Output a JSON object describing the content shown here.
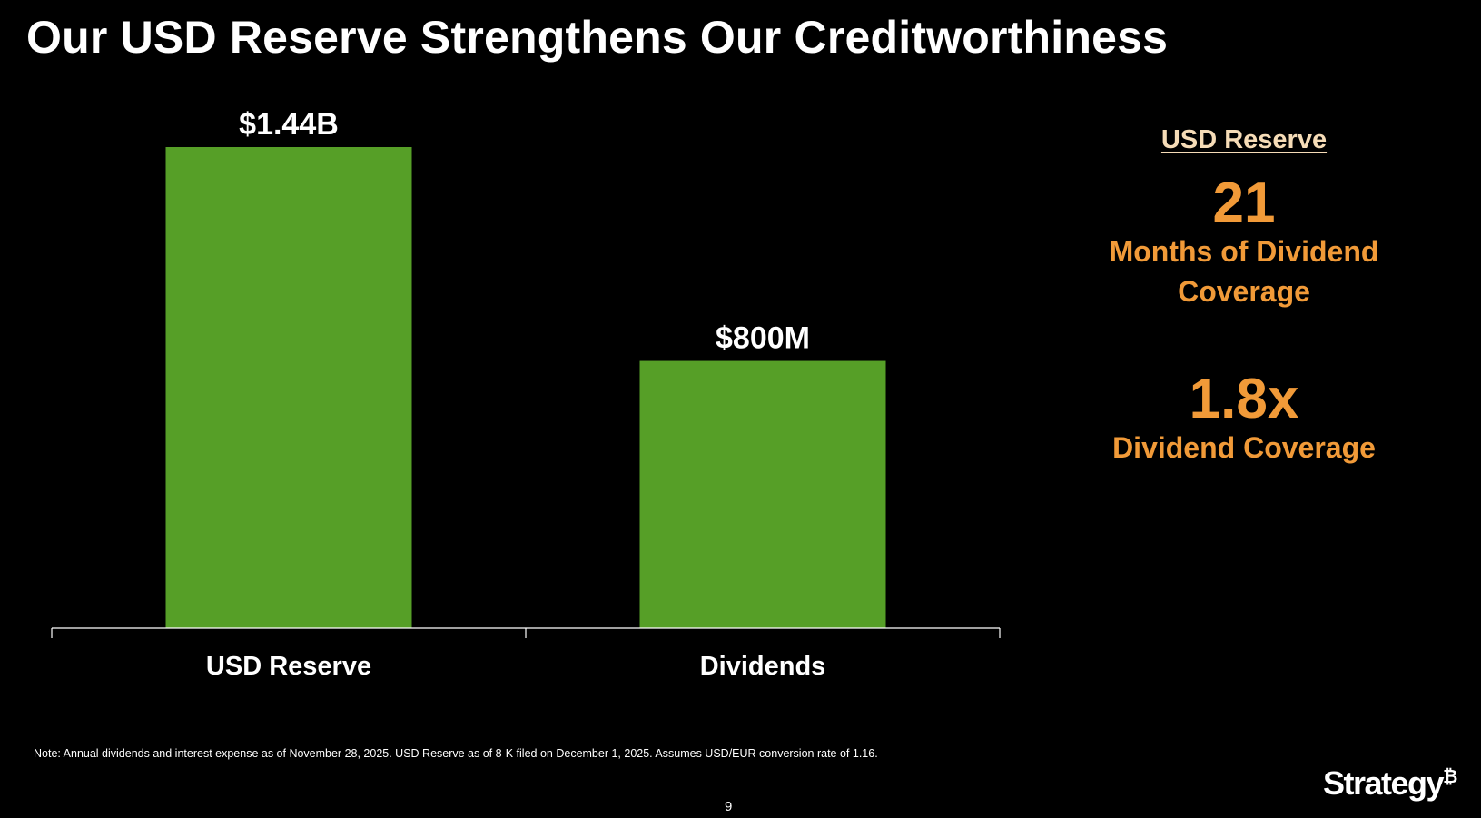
{
  "slide": {
    "title": "Our USD Reserve Strengthens Our Creditworthiness",
    "note": "Note: Annual dividends and interest expense as of November 28, 2025. USD Reserve as of 8-K filed on December 1, 2025. Assumes USD/EUR conversion rate of 1.16.",
    "page_number": "9",
    "logo_text": "Strategy",
    "logo_symbol": "₿"
  },
  "chart_data": {
    "type": "bar",
    "title": "",
    "xlabel": "",
    "ylabel": "",
    "categories": [
      "USD Reserve",
      "Dividends"
    ],
    "values": [
      1440,
      800
    ],
    "value_unit": "$M",
    "data_labels": [
      "$1.44B",
      "$800M"
    ],
    "ylim": [
      0,
      1440
    ],
    "grid": false,
    "legend": "none",
    "bar_color": "#569f27",
    "axis_color": "#ffffff"
  },
  "panel": {
    "heading": "USD Reserve",
    "metrics": [
      {
        "value": "21",
        "label_lines": [
          "Months of Dividend",
          "Coverage"
        ]
      },
      {
        "value": "1.8x",
        "label_lines": [
          "Dividend Coverage"
        ]
      }
    ],
    "heading_color": "#f6dcb7",
    "accent_color": "#f19a38"
  }
}
